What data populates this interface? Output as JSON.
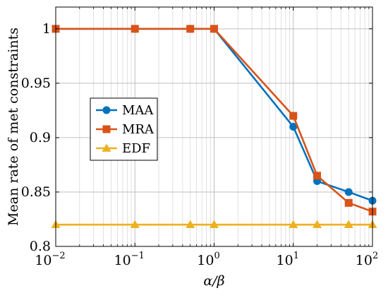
{
  "chart_data": {
    "type": "line",
    "title": "",
    "xlabel": "α/β",
    "ylabel": "Mean rate of met constraints",
    "xscale": "log",
    "xlim": [
      0.01,
      100
    ],
    "ylim": [
      0.8,
      1.02
    ],
    "grid": true,
    "legend_position": "center-left",
    "x_ticks": [
      {
        "base": "10",
        "exp": "−2",
        "value": 0.01
      },
      {
        "base": "10",
        "exp": "−1",
        "value": 0.1
      },
      {
        "base": "10",
        "exp": "0",
        "value": 1
      },
      {
        "base": "10",
        "exp": "1",
        "value": 10
      },
      {
        "base": "10",
        "exp": "2",
        "value": 100
      }
    ],
    "y_ticks": [
      {
        "label": "0.8",
        "value": 0.8
      },
      {
        "label": "0.85",
        "value": 0.85
      },
      {
        "label": "0.9",
        "value": 0.9
      },
      {
        "label": "0.95",
        "value": 0.95
      },
      {
        "label": "1",
        "value": 1.0
      }
    ],
    "series": [
      {
        "name": "MAA",
        "color": "#0072BD",
        "marker": "circle",
        "x": [
          0.01,
          0.1,
          0.5,
          1,
          10,
          20,
          50,
          100
        ],
        "y": [
          1.0,
          1.0,
          1.0,
          1.0,
          0.91,
          0.86,
          0.85,
          0.842
        ]
      },
      {
        "name": "MRA",
        "color": "#D95319",
        "marker": "square",
        "x": [
          0.01,
          0.1,
          0.5,
          1,
          10,
          20,
          50,
          100
        ],
        "y": [
          1.0,
          1.0,
          1.0,
          1.0,
          0.92,
          0.865,
          0.84,
          0.832
        ]
      },
      {
        "name": "EDF",
        "color": "#EDB120",
        "marker": "triangle",
        "x": [
          0.01,
          0.1,
          0.5,
          1,
          10,
          20,
          50,
          100
        ],
        "y": [
          0.82,
          0.82,
          0.82,
          0.82,
          0.82,
          0.82,
          0.82,
          0.82
        ]
      }
    ]
  }
}
